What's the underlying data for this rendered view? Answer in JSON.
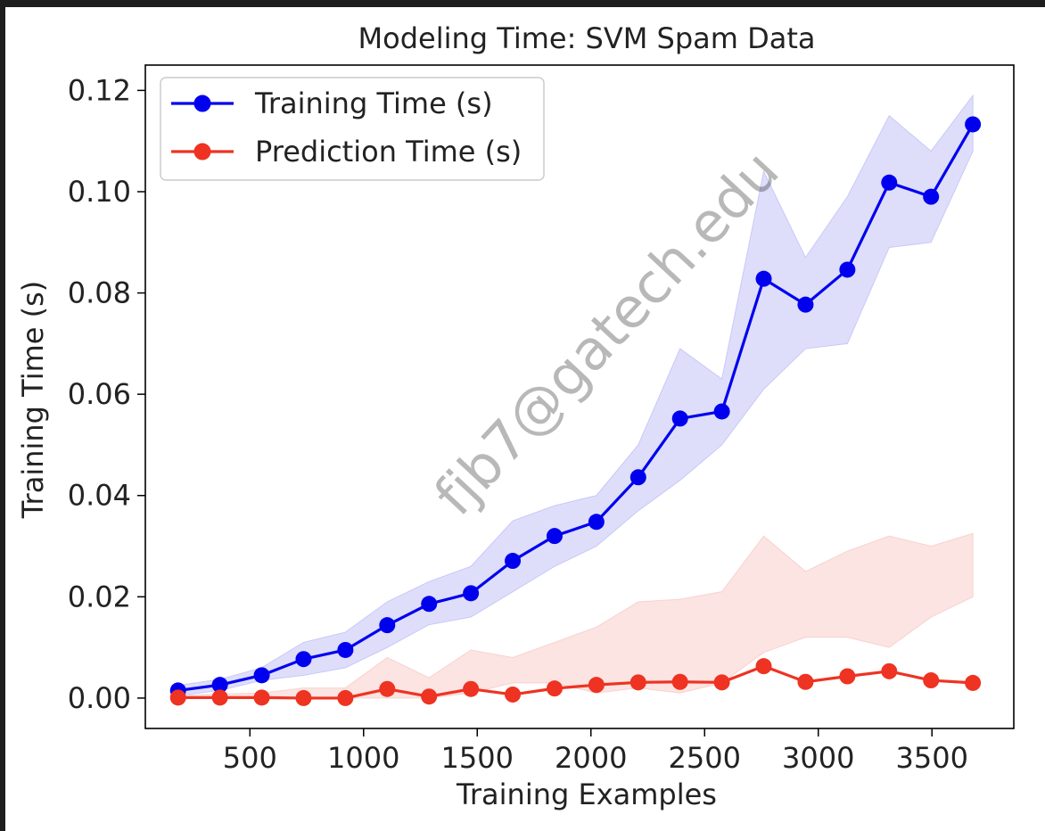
{
  "chart_data": {
    "type": "line",
    "title": "Modeling Time: SVM Spam Data",
    "xlabel": "Training Examples",
    "ylabel": "Training Time (s)",
    "xlim": [
      40,
      3860
    ],
    "ylim": [
      -0.006,
      0.125
    ],
    "grid": false,
    "legend_position": "top-left",
    "x_ticks": [
      500,
      1000,
      1500,
      2000,
      2500,
      3000,
      3500
    ],
    "x_tick_labels": [
      "500",
      "1000",
      "1500",
      "2000",
      "2500",
      "3000",
      "3500"
    ],
    "y_ticks": [
      0.0,
      0.02,
      0.04,
      0.06,
      0.08,
      0.1,
      0.12
    ],
    "y_tick_labels": [
      "0.00",
      "0.02",
      "0.04",
      "0.06",
      "0.08",
      "0.10",
      "0.12"
    ],
    "x": [
      184,
      368,
      552,
      736,
      920,
      1104,
      1288,
      1472,
      1656,
      1840,
      2024,
      2208,
      2392,
      2576,
      2760,
      2944,
      3128,
      3312,
      3496,
      3680
    ],
    "series": [
      {
        "name": "Training Time (s)",
        "color": "#0000ee",
        "band_color": "#c8c8f8",
        "values": [
          0.0015,
          0.0026,
          0.0045,
          0.0077,
          0.0095,
          0.0144,
          0.0186,
          0.0207,
          0.0271,
          0.032,
          0.0348,
          0.0436,
          0.0552,
          0.0566,
          0.0828,
          0.0777,
          0.0846,
          0.1018,
          0.099,
          0.1133
        ],
        "lower": [
          0.0005,
          0.0015,
          0.0035,
          0.0045,
          0.006,
          0.01,
          0.0145,
          0.016,
          0.021,
          0.026,
          0.03,
          0.037,
          0.043,
          0.05,
          0.061,
          0.069,
          0.07,
          0.089,
          0.09,
          0.108
        ],
        "upper": [
          0.0025,
          0.0037,
          0.006,
          0.011,
          0.013,
          0.019,
          0.023,
          0.026,
          0.035,
          0.038,
          0.04,
          0.05,
          0.069,
          0.063,
          0.104,
          0.087,
          0.099,
          0.115,
          0.108,
          0.119
        ]
      },
      {
        "name": "Prediction Time (s)",
        "color": "#ee3322",
        "band_color": "#f8d2cf",
        "values": [
          0.0001,
          0.0001,
          0.0001,
          0.0,
          0.0,
          0.0018,
          0.0003,
          0.0018,
          0.0007,
          0.0019,
          0.0026,
          0.0031,
          0.0032,
          0.0031,
          0.0063,
          0.0032,
          0.0043,
          0.0053,
          0.0035,
          0.003
        ],
        "lower": [
          0.0,
          0.0,
          0.0,
          0.0,
          0.0,
          0.0,
          0.0,
          0.001,
          0.003,
          0.003,
          0.001,
          0.002,
          0.001,
          0.003,
          0.009,
          0.012,
          0.012,
          0.01,
          0.016,
          0.02
        ],
        "upper": [
          0.0005,
          0.0008,
          0.001,
          0.002,
          0.002,
          0.008,
          0.004,
          0.0095,
          0.008,
          0.011,
          0.014,
          0.019,
          0.0195,
          0.021,
          0.032,
          0.025,
          0.029,
          0.032,
          0.03,
          0.0325
        ]
      }
    ],
    "watermark": "fjb7@gatech.edu"
  }
}
